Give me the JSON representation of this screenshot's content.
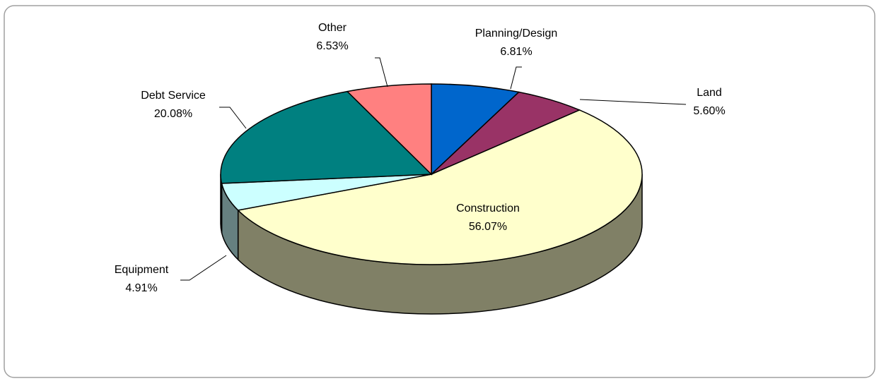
{
  "chart_data": {
    "type": "pie",
    "categories": [
      "Planning/Design",
      "Land",
      "Construction",
      "Equipment",
      "Debt Service",
      "Other"
    ],
    "values": [
      6.81,
      5.6,
      56.07,
      4.91,
      20.08,
      6.53
    ],
    "value_labels": [
      "6.81%",
      "5.60%",
      "56.07%",
      "4.91%",
      "20.08%",
      "6.53%"
    ],
    "colors": [
      "#0066cc",
      "#993366",
      "#ffffcc",
      "#ccffff",
      "#008080",
      "#ff8080"
    ]
  }
}
